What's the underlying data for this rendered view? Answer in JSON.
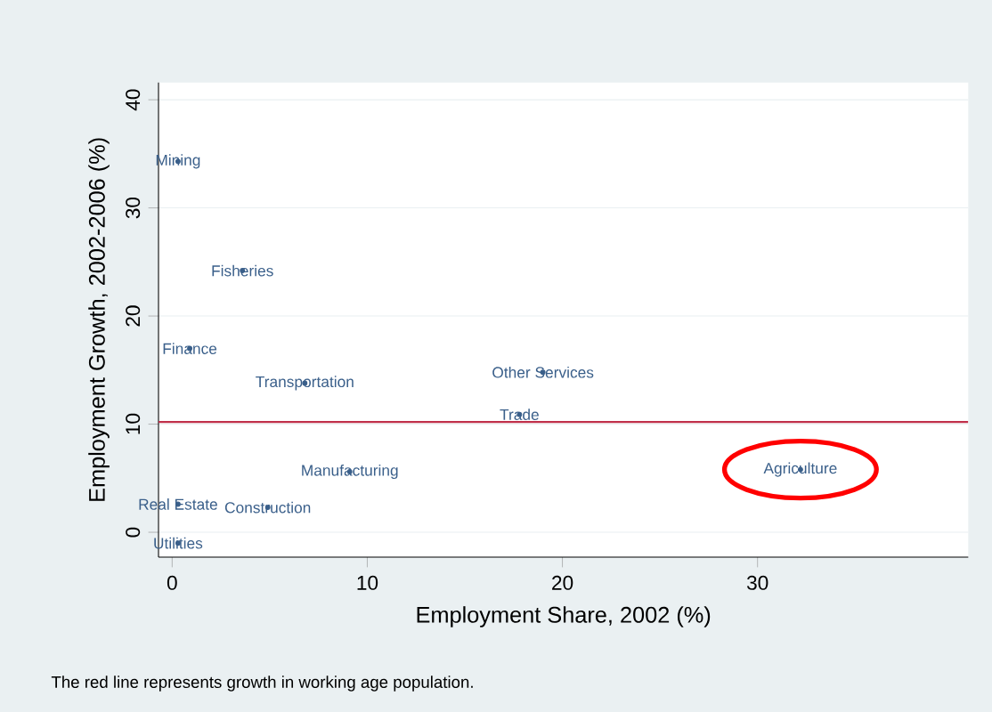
{
  "chart_data": {
    "type": "scatter",
    "xlabel": "Employment Share, 2002 (%)",
    "ylabel": "Employment Growth, 2002-2006 (%)",
    "xlim": [
      -0.7,
      40.8
    ],
    "ylim": [
      -2.3,
      41.6
    ],
    "xticks": [
      0,
      10,
      20,
      30
    ],
    "yticks": [
      0,
      10,
      20,
      30,
      40
    ],
    "grid": "y",
    "marker": "circle",
    "series": [
      {
        "name": "Mining",
        "color": "#3a5f8a",
        "x": [
          0.3
        ],
        "values": [
          34.3
        ]
      },
      {
        "name": "Fisheries",
        "color": "#3a5f8a",
        "x": [
          3.6
        ],
        "values": [
          24.2
        ]
      },
      {
        "name": "Finance",
        "color": "#3a5f8a",
        "x": [
          0.9
        ],
        "values": [
          17.0
        ]
      },
      {
        "name": "Transportation",
        "color": "#3a5f8a",
        "x": [
          6.8
        ],
        "values": [
          13.8
        ]
      },
      {
        "name": "Other Services",
        "color": "#3a5f8a",
        "x": [
          19.0
        ],
        "values": [
          14.8
        ]
      },
      {
        "name": "Trade",
        "color": "#3a5f8a",
        "x": [
          17.8
        ],
        "values": [
          10.9
        ]
      },
      {
        "name": "Manufacturing",
        "color": "#3a5f8a",
        "x": [
          9.1
        ],
        "values": [
          5.6
        ]
      },
      {
        "name": "Real Estate",
        "color": "#3a5f8a",
        "x": [
          0.3
        ],
        "values": [
          2.6
        ]
      },
      {
        "name": "Construction",
        "color": "#3a5f8a",
        "x": [
          4.9
        ],
        "values": [
          2.3
        ]
      },
      {
        "name": "Utilities",
        "color": "#3a5f8a",
        "x": [
          0.3
        ],
        "values": [
          -1.0
        ]
      },
      {
        "name": "Agriculture",
        "color": "#3a5f8a",
        "x": [
          32.2
        ],
        "values": [
          5.8
        ]
      }
    ],
    "ref_lines": [
      {
        "axis": "y",
        "value": 10.2,
        "color": "#c0304a"
      }
    ],
    "annotations": [
      "The red line represents growth in working age population."
    ]
  }
}
